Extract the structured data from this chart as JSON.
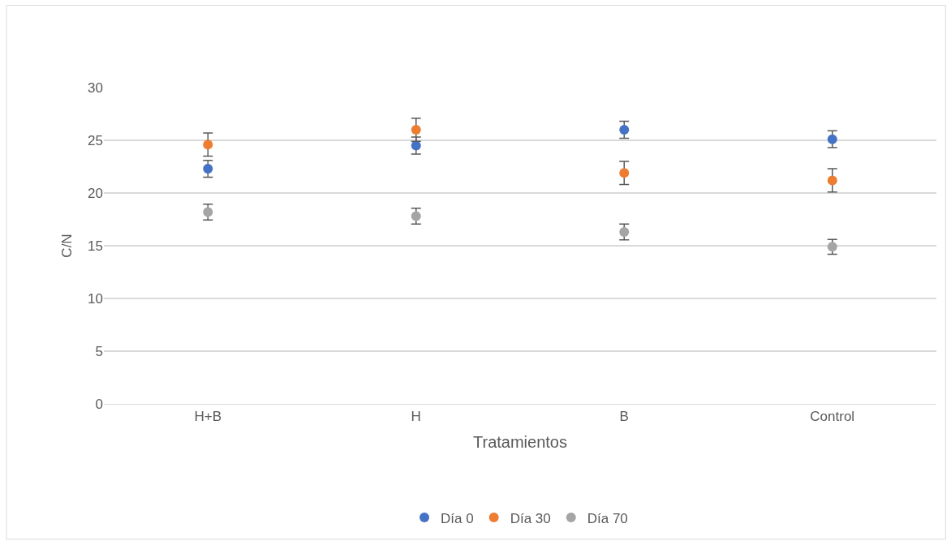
{
  "chart_data": {
    "type": "scatter",
    "xlabel": "Tratamientos",
    "ylabel": "C/N",
    "categories": [
      "H+B",
      "H",
      "B",
      "Control"
    ],
    "series": [
      {
        "name": "Día 0",
        "color": "#4472c4",
        "values": [
          22.3,
          24.5,
          26.0,
          25.1
        ],
        "errors": [
          0.8,
          0.8,
          0.8,
          0.8
        ]
      },
      {
        "name": "Día 30",
        "color": "#ed7d31",
        "values": [
          24.6,
          26.0,
          21.9,
          21.2
        ],
        "errors": [
          1.1,
          1.1,
          1.1,
          1.1
        ]
      },
      {
        "name": "Día 70",
        "color": "#a5a5a5",
        "values": [
          18.2,
          17.8,
          16.3,
          14.9
        ],
        "errors": [
          0.75,
          0.75,
          0.75,
          0.7
        ]
      }
    ],
    "ylim": [
      0,
      30
    ],
    "yticks": [
      0,
      5,
      10,
      15,
      20,
      25,
      30
    ],
    "grid": "y",
    "legend": "bottom",
    "marker": "circle"
  }
}
